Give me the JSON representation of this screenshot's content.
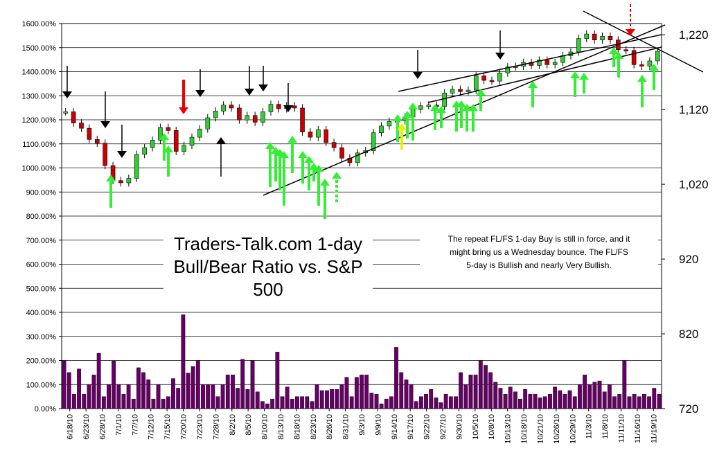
{
  "chart_data": {
    "type": "bar",
    "title_lines": [
      "Traders-Talk.com 1-day",
      "Bull/Bear Ratio vs. S&P",
      "500"
    ],
    "annotation_lines": [
      "The repeat FL/FS 1-day Buy is still in force, and it",
      "might bring us a Wednesday bounce. The FL/FS",
      "5-day is Bullish and nearly Very Bullish."
    ],
    "y_left": {
      "range": [
        0,
        1600
      ],
      "ticks": [
        {
          "value": 0,
          "label": "0.00%"
        },
        {
          "value": 100,
          "label": "100.00%"
        },
        {
          "value": 200,
          "label": "200.00%"
        },
        {
          "value": 300,
          "label": "300.00%"
        },
        {
          "value": 400,
          "label": "400.00%"
        },
        {
          "value": 500,
          "label": "500.00%"
        },
        {
          "value": 600,
          "label": "600.00%"
        },
        {
          "value": 700,
          "label": "700.00%"
        },
        {
          "value": 800,
          "label": "800.00%"
        },
        {
          "value": 900,
          "label": "900.00%"
        },
        {
          "value": 1000,
          "label": "1000.00%"
        },
        {
          "value": 1100,
          "label": "1100.00%"
        },
        {
          "value": 1200,
          "label": "1200.00%"
        },
        {
          "value": 1300,
          "label": "1300.00%"
        },
        {
          "value": 1400,
          "label": "1400.00%"
        },
        {
          "value": 1500,
          "label": "1500.00%"
        },
        {
          "value": 1600,
          "label": "1600.00%"
        }
      ]
    },
    "y_right": {
      "range": [
        720,
        1235
      ],
      "ticks": [
        {
          "value": 720,
          "label": "720"
        },
        {
          "value": 820,
          "label": "820"
        },
        {
          "value": 920,
          "label": "920"
        },
        {
          "value": 1020,
          "label": "1,020"
        },
        {
          "value": 1120,
          "label": "1,120"
        },
        {
          "value": 1220,
          "label": "1,220"
        }
      ]
    },
    "x_labels": [
      "6/18/10",
      "6/23/10",
      "6/28/10",
      "7/1/10",
      "7/7/10",
      "7/12/10",
      "7/15/10",
      "7/20/10",
      "7/23/10",
      "7/28/10",
      "8/2/10",
      "8/5/10",
      "8/10/10",
      "8/13/10",
      "8/18/10",
      "8/23/10",
      "8/26/10",
      "8/31/10",
      "9/3/10",
      "9/9/10",
      "9/14/10",
      "9/17/10",
      "9/22/10",
      "9/27/10",
      "9/30/10",
      "10/5/10",
      "10/8/10",
      "10/13/10",
      "10/18/10",
      "10/21/10",
      "10/26/10",
      "10/29/10",
      "11/3/10",
      "11/8/10",
      "11/11/10",
      "11/16/10",
      "11/19/10"
    ],
    "bull_bear_ratio": [
      200,
      150,
      60,
      165,
      60,
      100,
      140,
      230,
      50,
      100,
      198,
      100,
      60,
      100,
      40,
      170,
      150,
      120,
      40,
      100,
      40,
      50,
      125,
      85,
      390,
      148,
      175,
      200,
      100,
      100,
      100,
      50,
      100,
      140,
      140,
      85,
      205,
      80,
      200,
      70,
      30,
      20,
      40,
      235,
      50,
      90,
      40,
      50,
      50,
      50,
      30,
      100,
      75,
      75,
      80,
      80,
      100,
      130,
      50,
      130,
      140,
      140,
      65,
      60,
      20,
      40,
      50,
      255,
      150,
      120,
      100,
      30,
      50,
      60,
      80,
      45,
      25,
      60,
      50,
      50,
      150,
      100,
      140,
      140,
      200,
      180,
      150,
      110,
      85,
      60,
      90,
      70,
      40,
      80,
      60,
      60,
      45,
      50,
      60,
      90,
      75,
      60,
      75,
      50,
      100,
      140,
      100,
      110,
      115,
      70,
      100,
      50,
      60,
      200,
      50,
      60,
      50,
      60,
      50,
      85,
      60
    ],
    "sp500_weekly_close": [
      1117,
      1095,
      1075,
      1022,
      1028,
      1059,
      1079,
      1065,
      1071,
      1093,
      1101,
      1108,
      1125,
      1122,
      1083,
      1078,
      1069,
      1049,
      1065,
      1104,
      1105,
      1126,
      1150,
      1160,
      1148,
      1158,
      1168,
      1181,
      1180,
      1190,
      1182,
      1190,
      1219,
      1200,
      1199,
      1181,
      1200
    ],
    "sp500_daily_close": [
      1117,
      1102,
      1095,
      1080,
      1075,
      1045,
      1025,
      1022,
      1028,
      1060,
      1069,
      1079,
      1096,
      1092,
      1064,
      1072,
      1083,
      1094,
      1109,
      1118,
      1126,
      1122,
      1106,
      1112,
      1103,
      1117,
      1127,
      1121,
      1125,
      1122,
      1090,
      1083,
      1093,
      1076,
      1069,
      1055,
      1049,
      1062,
      1065,
      1089,
      1098,
      1104,
      1105,
      1110,
      1120,
      1125,
      1126,
      1124,
      1142,
      1147,
      1144,
      1146,
      1165,
      1159,
      1158,
      1169,
      1177,
      1178,
      1183,
      1179,
      1186,
      1180,
      1183,
      1192,
      1197,
      1215,
      1221,
      1213,
      1218,
      1213,
      1200,
      1199,
      1180,
      1178,
      1185,
      1198
    ],
    "trendlines_note": "hand-drawn trendlines and arrows over price"
  }
}
